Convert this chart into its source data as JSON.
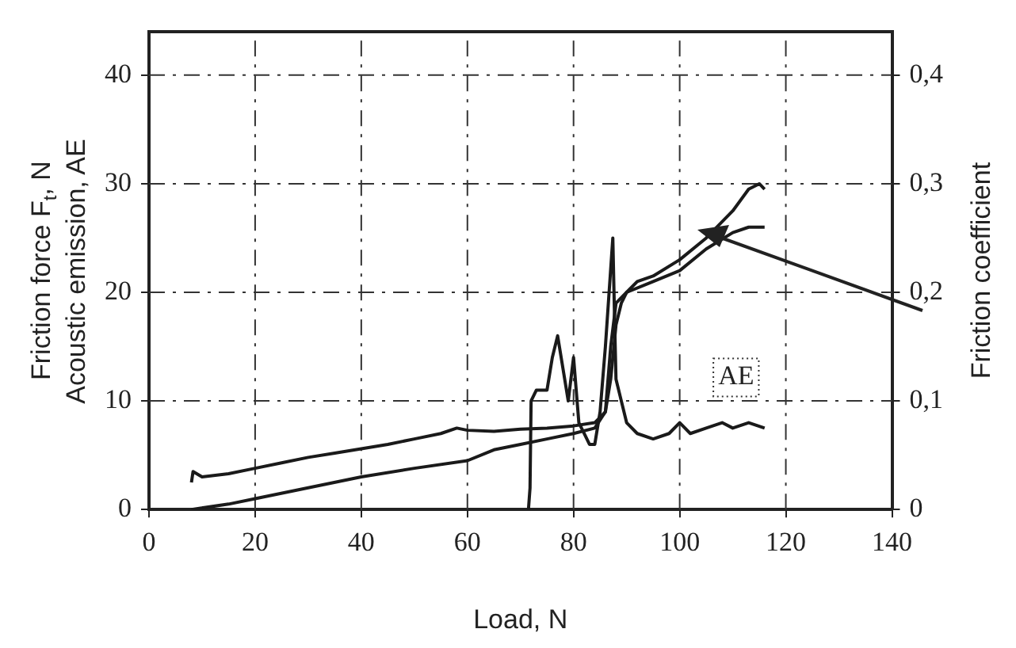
{
  "chart_data": {
    "type": "line",
    "xlabel": "Load, N",
    "ylabel": "Friction force F$_{t}$, N\nAcoustic emission, AE",
    "y2label": "Friction coefficient",
    "series": [
      {
        "color": "#1a1a1a",
        "x": [
          8,
          8.3,
          10,
          15,
          20,
          25,
          30,
          35,
          40,
          45,
          50,
          55,
          58,
          60,
          65,
          70,
          75,
          80,
          84,
          86,
          87,
          88,
          89,
          90,
          92,
          95,
          100,
          105,
          110,
          113,
          115,
          116
        ],
        "values": [
          2.5,
          3.5,
          3,
          3.3,
          3.8,
          4.3,
          4.8,
          5.2,
          5.6,
          6,
          6.5,
          7,
          7.5,
          7.3,
          7.2,
          7.4,
          7.5,
          7.7,
          8,
          9,
          12,
          17,
          19,
          20,
          21,
          21.5,
          23,
          25,
          27.5,
          29.5,
          30,
          29.5
        ]
      },
      {
        "color": "#1a1a1a",
        "axis": "y2",
        "x": [
          8,
          15,
          20,
          30,
          40,
          50,
          60,
          65,
          70,
          75,
          80,
          84,
          86,
          87,
          88,
          90,
          95,
          100,
          105,
          110,
          113,
          116
        ],
        "values": [
          0,
          0.005,
          0.01,
          0.02,
          0.03,
          0.038,
          0.045,
          0.055,
          0.06,
          0.065,
          0.07,
          0.075,
          0.09,
          0.15,
          0.19,
          0.2,
          0.21,
          0.22,
          0.24,
          0.255,
          0.26,
          0.26
        ]
      },
      {
        "name": "AE",
        "color": "#1a1a1a",
        "x": [
          71.5,
          71.8,
          72,
          73,
          75,
          76,
          77,
          78,
          79,
          80,
          81,
          82,
          83,
          84,
          85,
          86,
          87.4,
          87.8,
          88,
          89,
          90,
          92,
          95,
          98,
          100,
          102,
          105,
          108,
          110,
          113,
          116
        ],
        "values": [
          0,
          2,
          10,
          11,
          11,
          14,
          16,
          13,
          10,
          14,
          8,
          7,
          6,
          6,
          9,
          15,
          25,
          16,
          12,
          10,
          8,
          7,
          6.5,
          7,
          8,
          7,
          7.5,
          8,
          7.5,
          8,
          7.5
        ]
      }
    ],
    "xlim": [
      0,
      140
    ],
    "xticks": [
      0,
      20,
      40,
      60,
      80,
      100,
      120,
      140
    ],
    "ylim": [
      0,
      44
    ],
    "yticks": [
      0,
      10,
      20,
      30,
      40
    ],
    "y2lim": [
      0,
      0.44
    ],
    "y2ticks": [
      0,
      {
        "value": 0.1,
        "label": "0,1"
      },
      {
        "value": 0.2,
        "label": "0,2"
      },
      {
        "value": 0.3,
        "label": "0,3"
      },
      {
        "value": 0.4,
        "label": "0,4"
      }
    ],
    "grid": true,
    "legend": false,
    "marker": "none",
    "line_style": "solid"
  }
}
